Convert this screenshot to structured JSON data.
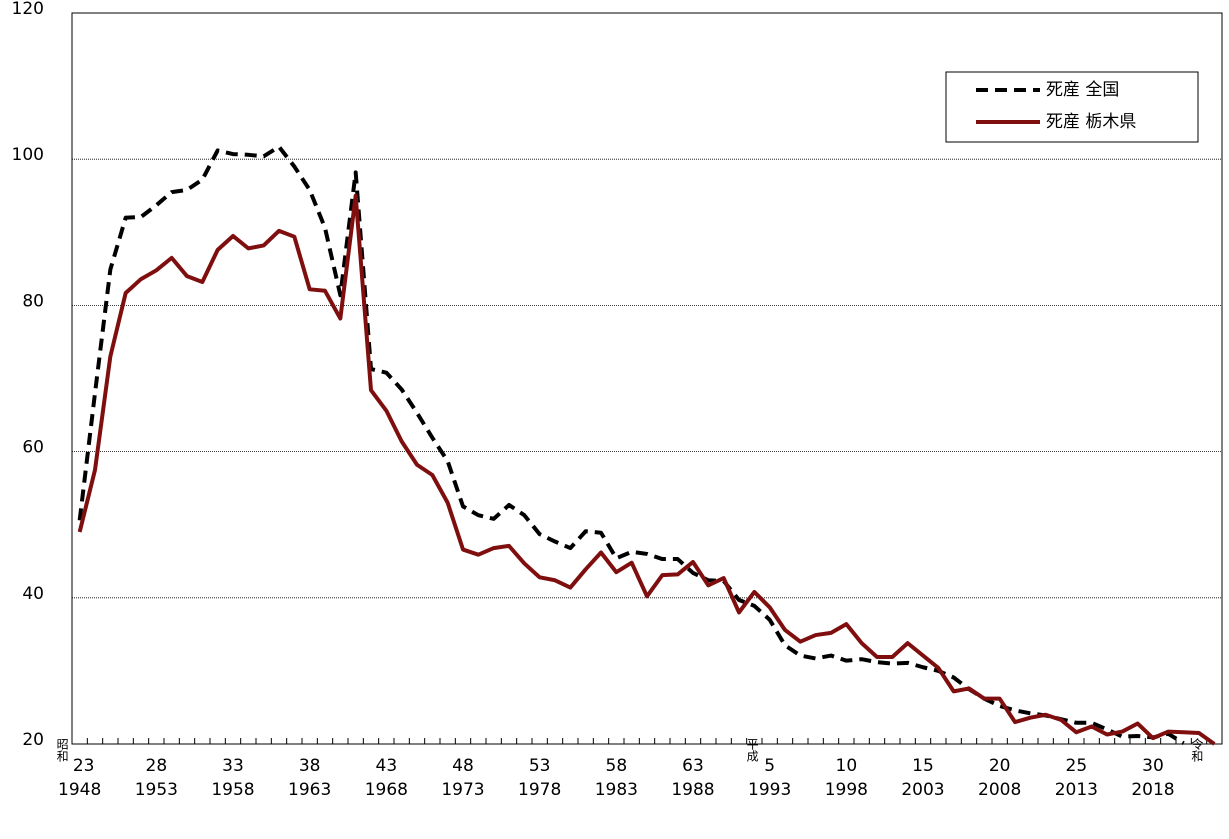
{
  "chart_data": {
    "type": "line",
    "categories": [
      "1948",
      null,
      null,
      null,
      null,
      "1953",
      null,
      null,
      null,
      null,
      "1958",
      null,
      null,
      null,
      null,
      "1963",
      null,
      null,
      null,
      null,
      "1968",
      null,
      null,
      null,
      null,
      "1973",
      null,
      null,
      null,
      null,
      "1978",
      null,
      null,
      null,
      null,
      "1983",
      null,
      null,
      null,
      null,
      "1988",
      null,
      null,
      null,
      null,
      "1993",
      null,
      null,
      null,
      null,
      "1998",
      null,
      null,
      null,
      null,
      "2003",
      null,
      null,
      null,
      null,
      "2008",
      null,
      null,
      null,
      null,
      "2013",
      null,
      null,
      null,
      null,
      "2018",
      null,
      null,
      null,
      null
    ],
    "era_year_labels": [
      "23",
      null,
      null,
      null,
      null,
      "28",
      null,
      null,
      null,
      null,
      "33",
      null,
      null,
      null,
      null,
      "38",
      null,
      null,
      null,
      null,
      "43",
      null,
      null,
      null,
      null,
      "48",
      null,
      null,
      null,
      null,
      "53",
      null,
      null,
      null,
      null,
      "58",
      null,
      null,
      null,
      null,
      "63",
      null,
      null,
      null,
      null,
      "5",
      null,
      null,
      null,
      null,
      "10",
      null,
      null,
      null,
      null,
      "15",
      null,
      null,
      null,
      null,
      "20",
      null,
      null,
      null,
      null,
      "25",
      null,
      null,
      null,
      null,
      "30",
      null,
      null,
      null,
      null
    ],
    "era_markers": [
      {
        "label": "昭和",
        "index": 0
      },
      {
        "label": "平成",
        "index": 45
      },
      {
        "label": "令和",
        "index": 74
      }
    ],
    "series": [
      {
        "name": "死産 全国",
        "color": "#000000",
        "dash": true,
        "values": [
          50.6,
          68,
          84.9,
          92.0,
          92.1,
          93.7,
          95.5,
          95.8,
          97.2,
          101.2,
          100.7,
          100.6,
          100.4,
          101.7,
          99.0,
          95.8,
          90.6,
          81.4,
          98.2,
          71.3,
          70.8,
          68.5,
          65.3,
          61.9,
          58.7,
          52.5,
          51.3,
          50.8,
          52.7,
          51.3,
          48.7,
          47.7,
          46.8,
          49.1,
          48.9,
          45.4,
          46.3,
          46.0,
          45.3,
          45.3,
          43.4,
          42.4,
          42.3,
          39.7,
          38.9,
          37.0,
          33.5,
          32.1,
          31.7,
          32.1,
          31.4,
          31.6,
          31.2,
          31.0,
          31.1,
          30.5,
          30.0,
          29.1,
          27.5,
          26.2,
          25.2,
          24.6,
          24.2,
          23.9,
          23.4,
          22.9,
          22.9,
          22.0,
          21.0,
          21.1,
          20.9,
          21.4,
          20.1,
          null,
          null
        ]
      },
      {
        "name": "死産 栃木県",
        "color": "#7f0f0f",
        "dash": false,
        "values": [
          49.0,
          57.5,
          73.0,
          81.7,
          83.6,
          84.8,
          86.5,
          84.0,
          83.2,
          87.6,
          89.5,
          87.8,
          88.2,
          90.2,
          89.4,
          82.2,
          82.0,
          78.2,
          95.0,
          68.4,
          65.6,
          61.4,
          58.2,
          56.8,
          53.0,
          46.6,
          45.9,
          46.8,
          47.1,
          44.7,
          42.8,
          42.4,
          41.4,
          43.9,
          46.2,
          43.5,
          44.8,
          40.2,
          43.1,
          43.2,
          44.9,
          41.7,
          42.7,
          38.0,
          40.8,
          38.7,
          35.6,
          34.0,
          34.9,
          35.2,
          36.4,
          33.8,
          31.9,
          31.9,
          33.8,
          32.1,
          30.4,
          27.2,
          27.6,
          26.2,
          26.2,
          23.0,
          23.6,
          24.0,
          23.3,
          21.6,
          22.4,
          21.3,
          21.7,
          22.8,
          20.8,
          21.7,
          21.6,
          21.5,
          20.0
        ]
      }
    ],
    "ylim": [
      20,
      120
    ],
    "yticks": [
      20,
      40,
      60,
      80,
      100,
      120
    ],
    "grid": true,
    "legend": "upper right"
  }
}
